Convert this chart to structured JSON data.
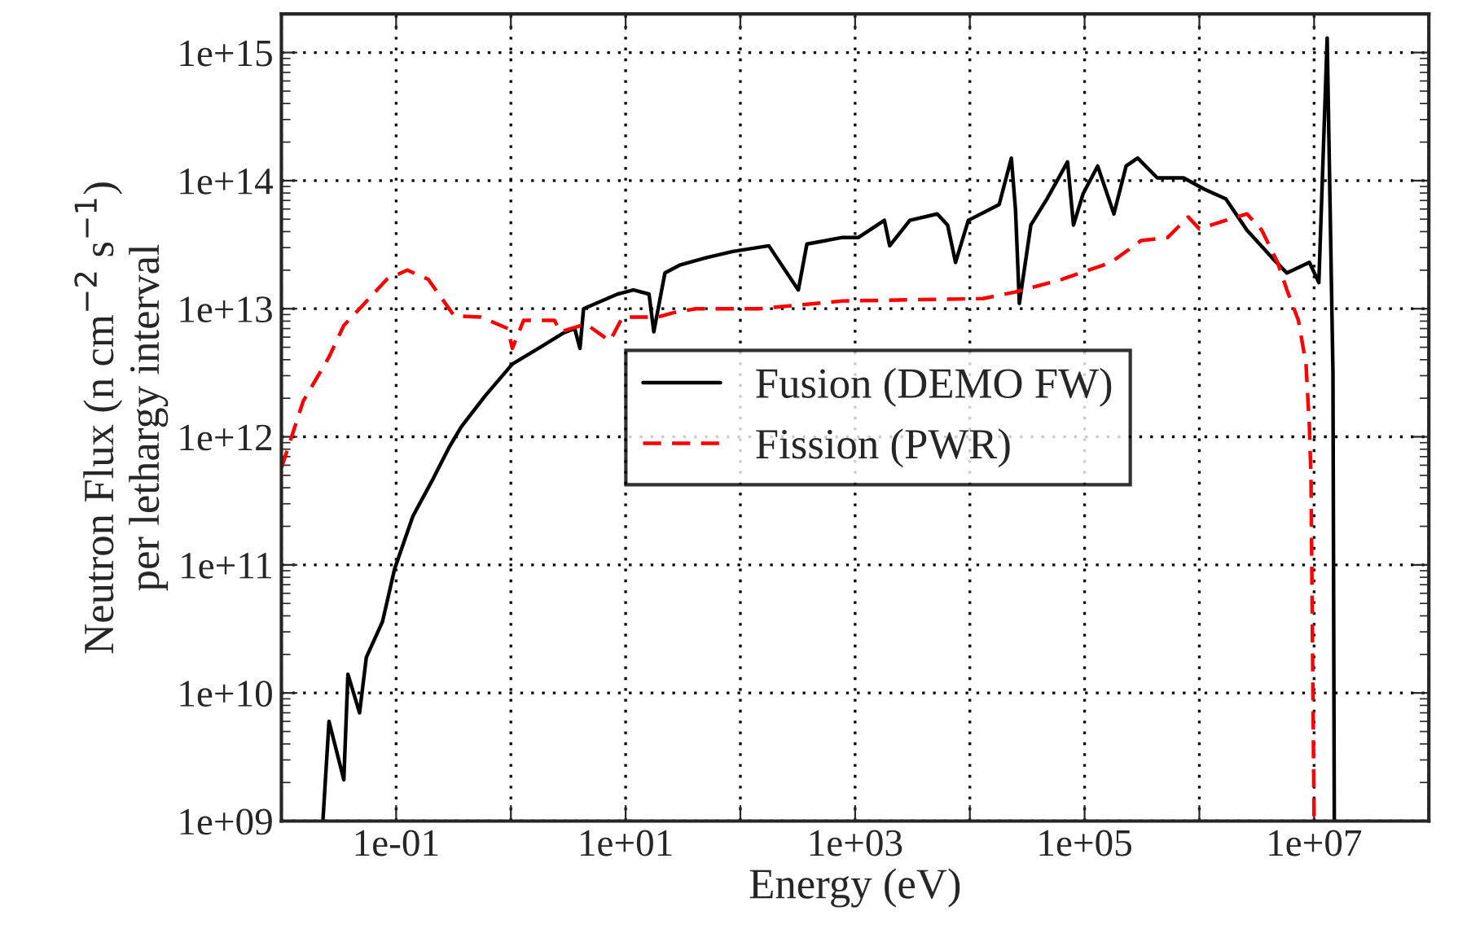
{
  "chart_data": {
    "type": "line",
    "xlabel": "Energy (eV)",
    "ylabel": "Neutron Flux (n cm$^{−2}$ s$^{−1}$)\nper lethargy interval",
    "log": "xy",
    "grid": true,
    "legend": "center",
    "xlim": [
      0.01,
      100000000.0
    ],
    "ylim": [
      1000000000.0,
      2000000000000000.0
    ],
    "xticks": [
      {
        "value": 0.01,
        "label": null
      },
      {
        "value": 0.1,
        "label": "1e-01"
      },
      {
        "value": 1,
        "label": null
      },
      {
        "value": 10,
        "label": "1e+01"
      },
      {
        "value": 100,
        "label": null
      },
      {
        "value": 1000,
        "label": "1e+03"
      },
      {
        "value": 10000,
        "label": null
      },
      {
        "value": 100000,
        "label": "1e+05"
      },
      {
        "value": 1000000,
        "label": null
      },
      {
        "value": 10000000,
        "label": "1e+07"
      },
      {
        "value": 100000000,
        "label": null
      }
    ],
    "yticks": [
      {
        "value": 1000000000.0,
        "label": "1e+09"
      },
      {
        "value": 10000000000.0,
        "label": "1e+10"
      },
      {
        "value": 100000000000.0,
        "label": "1e+11"
      },
      {
        "value": 1000000000000.0,
        "label": "1e+12"
      },
      {
        "value": 10000000000000.0,
        "label": "1e+13"
      },
      {
        "value": 100000000000000.0,
        "label": "1e+14"
      },
      {
        "value": 1000000000000000.0,
        "label": "1e+15"
      }
    ],
    "series": [
      {
        "name": "Fusion (DEMO FW)",
        "color": "#000000",
        "line_style": "solid",
        "x": [
          0.023,
          0.026,
          0.035,
          0.038,
          0.048,
          0.055,
          0.076,
          0.097,
          0.14,
          0.21,
          0.29,
          0.37,
          0.6,
          1.03,
          1.8,
          2.9,
          3.6,
          4.0,
          4.3,
          8.5,
          11.7,
          16,
          17.6,
          22,
          30,
          50,
          86,
          177,
          320,
          380,
          780,
          1070,
          1800,
          2000,
          3000,
          5200,
          6400,
          7500,
          9700,
          18000,
          23000,
          25000,
          27000,
          34000,
          47000,
          71000,
          80000,
          97000,
          130000,
          180000,
          230000,
          290000,
          430000,
          730000,
          1100000,
          1700000,
          2600000,
          4300000,
          5800000,
          9100000,
          11000000,
          13000000,
          14600000,
          15000000
        ],
        "values": [
          1000000000.0,
          6000000000.0,
          2100000000.0,
          14000000000.0,
          7000000000.0,
          19000000000.0,
          36000000000.0,
          93000000000.0,
          240000000000.0,
          470000000000.0,
          830000000000.0,
          1200000000000.0,
          2100000000000.0,
          3700000000000.0,
          5000000000000.0,
          6500000000000.0,
          7000000000000.0,
          4900000000000.0,
          10000000000000.0,
          13000000000000.0,
          14000000000000.0,
          13000000000000.0,
          6600000000000.0,
          19000000000000.0,
          22000000000000.0,
          25000000000000.0,
          28000000000000.0,
          31000000000000.0,
          14000000000000.0,
          32000000000000.0,
          36000000000000.0,
          36000000000000.0,
          49000000000000.0,
          31000000000000.0,
          49000000000000.0,
          55000000000000.0,
          45000000000000.0,
          23000000000000.0,
          49000000000000.0,
          65000000000000.0,
          150000000000000.0,
          59000000000000.0,
          11000000000000.0,
          45000000000000.0,
          72000000000000.0,
          140000000000000.0,
          45000000000000.0,
          79000000000000.0,
          130000000000000.0,
          55000000000000.0,
          130000000000000.0,
          150000000000000.0,
          105000000000000.0,
          105000000000000.0,
          86000000000000.0,
          72000000000000.0,
          41000000000000.0,
          25000000000000.0,
          19000000000000.0,
          23000000000000.0,
          16000000000000.0,
          1300000000000000.0,
          3200000000000.0,
          1000000000.0
        ]
      },
      {
        "name": "Fission (PWR)",
        "color": "#ff0000",
        "line_style": "dashed",
        "x": [
          0.01,
          0.0155,
          0.026,
          0.035,
          0.048,
          0.083,
          0.125,
          0.19,
          0.32,
          0.55,
          0.94,
          1.03,
          1.29,
          2.4,
          2.7,
          4.5,
          7.3,
          9.4,
          19,
          26,
          41,
          146,
          780,
          13000,
          25000,
          64000,
          170000,
          310000,
          530000,
          800000,
          1000000,
          1700000,
          2600000,
          3500000,
          4800000,
          5800000,
          7300000,
          8500000,
          9100000,
          9400000,
          10000000
        ],
        "values": [
          570000000000.0,
          1900000000000.0,
          4200000000000.0,
          7400000000000.0,
          10000000000000.0,
          17000000000000.0,
          20000000000000.0,
          17000000000000.0,
          8800000000000.0,
          8600000000000.0,
          7000000000000.0,
          4900000000000.0,
          8100000000000.0,
          8100000000000.0,
          6600000000000.0,
          7600000000000.0,
          5600000000000.0,
          8600000000000.0,
          8600000000000.0,
          9300000000000.0,
          10000000000000.0,
          10000000000000.0,
          11500000000000.0,
          12000000000000.0,
          13500000000000.0,
          17000000000000.0,
          23000000000000.0,
          34000000000000.0,
          36000000000000.0,
          52000000000000.0,
          42000000000000.0,
          49000000000000.0,
          55000000000000.0,
          41000000000000.0,
          23000000000000.0,
          14000000000000.0,
          8100000000000.0,
          3700000000000.0,
          1200000000000.0,
          470000000000.0,
          1000000000.0
        ]
      }
    ]
  }
}
